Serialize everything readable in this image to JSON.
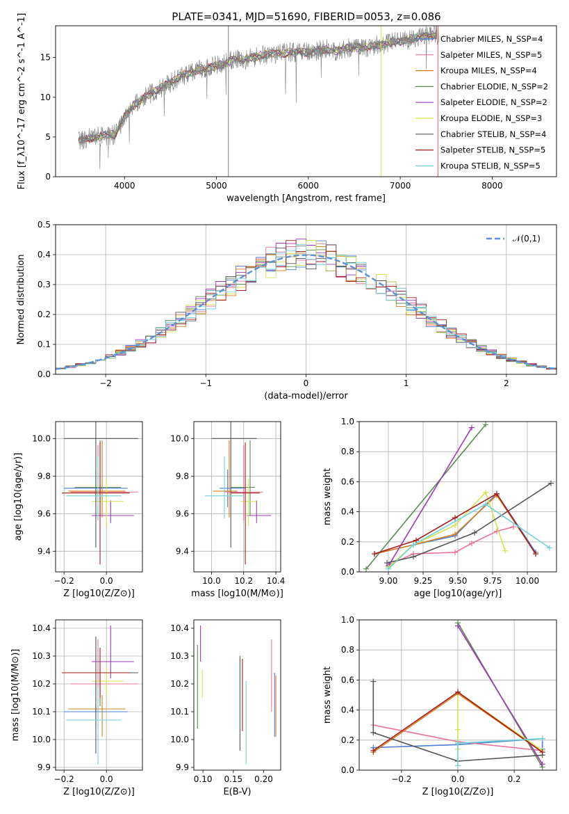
{
  "figure_title": "PLATE=0341, MJD=51690, FIBERID=0053, z=0.086",
  "model_colors": [
    "#4a7fd3",
    "#e8749a",
    "#d57e1c",
    "#5b8a52",
    "#9c38b8",
    "#d6e14e",
    "#555555",
    "#a51d1d",
    "#6fd3d8"
  ],
  "chart_data": [
    {
      "id": "spectrum",
      "type": "line",
      "title": "PLATE=0341, MJD=51690, FIBERID=0053, z=0.086",
      "xlabel": "wavelength [Angstrom, rest frame]",
      "ylabel": "Flux [f_λ10^-17 erg cm^-2 s^-1 A^-1]",
      "xlim": [
        3250,
        8700
      ],
      "ylim": [
        0,
        19
      ],
      "xticks": [
        4000,
        5000,
        6000,
        7000,
        8000
      ],
      "yticks": [
        0,
        5,
        10,
        15
      ],
      "grid": false,
      "legend_position": "top-right",
      "data_series": {
        "name": "",
        "color": "#808080",
        "x": [
          3500,
          3600,
          3700,
          3800,
          3900,
          4000,
          4100,
          4200,
          4300,
          4400,
          4500,
          4600,
          4700,
          4800,
          4900,
          5000,
          5100,
          5200,
          5300,
          5400,
          5500,
          5600,
          5700,
          5800,
          5900,
          6000,
          6100,
          6200,
          6300,
          6400,
          6500,
          6600,
          6700,
          6800,
          6900,
          7000,
          7100,
          7200,
          7300,
          7400
        ],
        "y": [
          4.5,
          4.8,
          5.0,
          5.2,
          5.3,
          7.5,
          9.0,
          9.8,
          10.6,
          11.2,
          11.8,
          12.6,
          13.0,
          13.5,
          13.6,
          14.0,
          14.3,
          14.8,
          14.7,
          15.0,
          15.3,
          15.5,
          15.5,
          15.6,
          15.7,
          15.6,
          15.9,
          16.0,
          15.8,
          16.2,
          16.3,
          16.2,
          16.5,
          16.6,
          16.9,
          17.0,
          17.3,
          17.5,
          17.7,
          17.9
        ]
      },
      "series": [
        {
          "name": "Chabrier MILES, N_SSP=4"
        },
        {
          "name": "Salpeter MILES, N_SSP=5"
        },
        {
          "name": "Kroupa MILES, N_SSP=4"
        },
        {
          "name": "Chabrier ELODIE, N_SSP=2"
        },
        {
          "name": "Salpeter ELODIE, N_SSP=2"
        },
        {
          "name": "Kroupa ELODIE, N_SSP=3"
        },
        {
          "name": "Chabrier STELIB, N_SSP=4"
        },
        {
          "name": "Salpeter STELIB, N_SSP=5"
        },
        {
          "name": "Kroupa STELIB, N_SSP=5"
        }
      ]
    },
    {
      "id": "residual-histogram",
      "type": "bar",
      "xlabel": "(data-model)/error",
      "ylabel": "Normed distribution",
      "xlim": [
        -2.5,
        2.5
      ],
      "ylim": [
        0,
        0.5
      ],
      "xticks": [
        -2,
        -1,
        0,
        1,
        2
      ],
      "yticks": [
        0.0,
        0.1,
        0.2,
        0.3,
        0.4,
        0.5
      ],
      "grid": true,
      "legend_position": "top-right",
      "reference_curve": {
        "name": "𝒩(0,1)",
        "mean": 0,
        "sigma": 1
      },
      "bin_width": 0.1
    },
    {
      "id": "age-vs-z",
      "type": "scatter",
      "xlabel": "Z [log10(Z/Z⊙)]",
      "ylabel": "age [log10(age/yr)]",
      "xlim": [
        -0.24,
        0.17
      ],
      "ylim": [
        9.29,
        10.09
      ],
      "xticks": [
        -0.2,
        0.0
      ],
      "yticks": [
        9.4,
        9.6,
        9.8,
        10.0
      ],
      "grid": true,
      "points": [
        {
          "x": -0.05,
          "y": 9.735,
          "xerr": [
            0.15,
            0.15
          ],
          "yerr": [
            0.1,
            0.1
          ]
        },
        {
          "x": -0.04,
          "y": 9.715,
          "xerr": [
            0.13,
            0.19
          ],
          "yerr": [
            0.15,
            0.25
          ]
        },
        {
          "x": -0.02,
          "y": 9.72,
          "xerr": [
            0.16,
            0.11
          ],
          "yerr": [
            0.14,
            0.27
          ]
        },
        {
          "x": -0.03,
          "y": 9.74,
          "xerr": [
            0.12,
            0.1
          ],
          "yerr": [
            0.15,
            0.25
          ]
        },
        {
          "x": 0.02,
          "y": 9.59,
          "xerr": [
            0.09,
            0.11
          ],
          "yerr": [
            0.04,
            0.08
          ]
        },
        {
          "x": 0.0,
          "y": 9.665,
          "xerr": [
            0.07,
            0.08
          ],
          "yerr": [
            0.13,
            0.12
          ]
        },
        {
          "x": -0.05,
          "y": 10.0,
          "xerr": [
            0.15,
            0.2
          ],
          "yerr": [
            0.58,
            0.6
          ]
        },
        {
          "x": -0.03,
          "y": 9.71,
          "xerr": [
            0.18,
            0.14
          ],
          "yerr": [
            0.38,
            0.27
          ]
        },
        {
          "x": -0.04,
          "y": 9.695,
          "xerr": [
            0.15,
            0.11
          ],
          "yerr": [
            0.12,
            0.21
          ]
        }
      ]
    },
    {
      "id": "age-vs-mass",
      "type": "scatter",
      "xlabel": "mass [log10(M/M⊙)]",
      "ylabel": "",
      "xlim": [
        9.89,
        10.43
      ],
      "ylim": [
        9.29,
        10.09
      ],
      "xticks": [
        10.0,
        10.2,
        10.4
      ],
      "yticks": [
        9.4,
        9.6,
        9.8,
        10.0
      ],
      "grid": true,
      "points": [
        {
          "x": 10.1,
          "y": 9.735,
          "xerr": [
            0.05,
            0.11
          ],
          "yerr": [
            0.1,
            0.1
          ]
        },
        {
          "x": 10.2,
          "y": 9.715,
          "xerr": [
            0.12,
            0.12
          ],
          "yerr": [
            0.15,
            0.25
          ]
        },
        {
          "x": 10.11,
          "y": 9.72,
          "xerr": [
            0.1,
            0.05
          ],
          "yerr": [
            0.14,
            0.27
          ]
        },
        {
          "x": 10.24,
          "y": 9.74,
          "xerr": [
            0.12,
            0.03
          ],
          "yerr": [
            0.15,
            0.25
          ]
        },
        {
          "x": 10.28,
          "y": 9.59,
          "xerr": [
            0.06,
            0.09
          ],
          "yerr": [
            0.04,
            0.08
          ]
        },
        {
          "x": 10.23,
          "y": 9.665,
          "xerr": [
            0.05,
            0.05
          ],
          "yerr": [
            0.13,
            0.12
          ]
        },
        {
          "x": 10.12,
          "y": 10.0,
          "xerr": [
            0.12,
            0.16
          ],
          "yerr": [
            0.58,
            0.6
          ]
        },
        {
          "x": 10.21,
          "y": 9.71,
          "xerr": [
            0.09,
            0.09
          ],
          "yerr": [
            0.38,
            0.27
          ]
        },
        {
          "x": 10.08,
          "y": 9.695,
          "xerr": [
            0.12,
            0.12
          ],
          "yerr": [
            0.12,
            0.21
          ]
        }
      ]
    },
    {
      "id": "mass-weight-vs-age",
      "type": "line",
      "xlabel": "age [log10(age/yr)]",
      "ylabel": "mass weight",
      "xlim": [
        8.79,
        10.21
      ],
      "ylim": [
        0,
        1
      ],
      "xticks": [
        9.0,
        9.25,
        9.5,
        9.75,
        10.0
      ],
      "yticks": [
        0.0,
        0.2,
        0.4,
        0.6,
        0.8,
        1.0
      ],
      "grid": true,
      "series": [
        {
          "x": [
            8.9,
            9.18,
            9.48,
            9.78,
            10.06
          ],
          "y": [
            0.12,
            0.18,
            0.24,
            0.52,
            0.13
          ]
        },
        {
          "x": [
            9.01,
            9.18,
            9.48,
            9.6,
            9.78,
            9.9
          ],
          "y": [
            0.05,
            0.12,
            0.13,
            0.19,
            0.27,
            0.3
          ]
        },
        {
          "x": [
            8.9,
            9.18,
            9.48,
            9.78,
            10.06
          ],
          "y": [
            0.12,
            0.18,
            0.25,
            0.51,
            0.12
          ]
        },
        {
          "x": [
            8.84,
            9.7
          ],
          "y": [
            0.02,
            0.98
          ]
        },
        {
          "x": [
            9.0,
            9.6
          ],
          "y": [
            0.04,
            0.96
          ]
        },
        {
          "x": [
            9.0,
            9.18,
            9.48,
            9.7,
            9.84
          ],
          "y": [
            0.03,
            0.18,
            0.31,
            0.53,
            0.14
          ]
        },
        {
          "x": [
            8.99,
            9.18,
            9.62,
            10.17
          ],
          "y": [
            0.06,
            0.1,
            0.26,
            0.59
          ]
        },
        {
          "x": [
            8.9,
            9.2,
            9.48,
            9.78,
            10.06
          ],
          "y": [
            0.12,
            0.21,
            0.36,
            0.52,
            0.12
          ]
        },
        {
          "x": [
            9.0,
            9.18,
            9.7,
            10.16
          ],
          "y": [
            0.02,
            0.18,
            0.45,
            0.16
          ]
        }
      ]
    },
    {
      "id": "mass-vs-z",
      "type": "scatter",
      "xlabel": "Z [log10(Z/Z⊙)]",
      "ylabel": "mass [log10(M/M⊙)]",
      "xlim": [
        -0.24,
        0.17
      ],
      "ylim": [
        9.89,
        10.43
      ],
      "xticks": [
        -0.2,
        0.0
      ],
      "yticks": [
        9.9,
        10.0,
        10.1,
        10.2,
        10.3,
        10.4
      ],
      "grid": true,
      "points": [
        {
          "x": -0.05,
          "y": 10.1,
          "xerr": [
            0.15,
            0.15
          ],
          "yerr": [
            0.05,
            0.11
          ]
        },
        {
          "x": -0.04,
          "y": 10.2,
          "xerr": [
            0.13,
            0.19
          ],
          "yerr": [
            0.12,
            0.16
          ]
        },
        {
          "x": -0.02,
          "y": 10.11,
          "xerr": [
            0.16,
            0.11
          ],
          "yerr": [
            0.1,
            0.05
          ]
        },
        {
          "x": -0.03,
          "y": 10.24,
          "xerr": [
            0.12,
            0.1
          ],
          "yerr": [
            0.12,
            0.03
          ]
        },
        {
          "x": 0.02,
          "y": 10.28,
          "xerr": [
            0.09,
            0.11
          ],
          "yerr": [
            0.06,
            0.13
          ]
        },
        {
          "x": 0.0,
          "y": 10.21,
          "xerr": [
            0.07,
            0.08
          ],
          "yerr": [
            0.05,
            0.05
          ]
        },
        {
          "x": -0.05,
          "y": 10.24,
          "xerr": [
            0.15,
            0.2
          ],
          "yerr": [
            0.29,
            0.13
          ]
        },
        {
          "x": -0.03,
          "y": 10.24,
          "xerr": [
            0.18,
            0.14
          ],
          "yerr": [
            0.09,
            0.09
          ]
        },
        {
          "x": -0.04,
          "y": 10.07,
          "xerr": [
            0.15,
            0.11
          ],
          "yerr": [
            0.16,
            0.12
          ]
        }
      ]
    },
    {
      "id": "mass-vs-ebv",
      "type": "scatter",
      "xlabel": "E(B-V)",
      "ylabel": "",
      "xlim": [
        0.085,
        0.228
      ],
      "ylim": [
        9.89,
        10.43
      ],
      "xticks": [
        0.1,
        0.15,
        0.2
      ],
      "yticks": [
        9.9,
        10.0,
        10.1,
        10.2,
        10.3,
        10.4
      ],
      "grid": false,
      "points": [
        {
          "x": 0.218,
          "y": 10.1,
          "xerr": [
            0,
            0
          ],
          "yerr": [
            0.09,
            0.14
          ]
        },
        {
          "x": 0.213,
          "y": 10.2,
          "xerr": [
            0,
            0
          ],
          "yerr": [
            0.1,
            0.16
          ]
        },
        {
          "x": 0.22,
          "y": 10.11,
          "xerr": [
            0,
            0
          ],
          "yerr": [
            0.1,
            0.12
          ]
        },
        {
          "x": 0.091,
          "y": 10.2,
          "xerr": [
            0,
            0
          ],
          "yerr": [
            0.16,
            0.14
          ]
        },
        {
          "x": 0.096,
          "y": 10.34,
          "xerr": [
            0,
            0
          ],
          "yerr": [
            0.06,
            0.07
          ]
        },
        {
          "x": 0.099,
          "y": 10.2,
          "xerr": [
            0,
            0
          ],
          "yerr": [
            0.05,
            0.05
          ]
        },
        {
          "x": 0.161,
          "y": 10.12,
          "xerr": [
            0,
            0
          ],
          "yerr": [
            0.16,
            0.18
          ]
        },
        {
          "x": 0.165,
          "y": 10.15,
          "xerr": [
            0,
            0
          ],
          "yerr": [
            0.12,
            0.14
          ]
        },
        {
          "x": 0.171,
          "y": 10.05,
          "xerr": [
            0,
            0
          ],
          "yerr": [
            0.14,
            0.16
          ]
        }
      ]
    },
    {
      "id": "mass-weight-vs-z",
      "type": "line",
      "xlabel": "Z [log10(Z/Z⊙)]",
      "ylabel": "mass weight",
      "xlim": [
        -0.35,
        0.35
      ],
      "ylim": [
        0,
        1
      ],
      "xticks": [
        -0.2,
        0.0,
        0.2
      ],
      "yticks": [
        0.0,
        0.2,
        0.4,
        0.6,
        0.8,
        1.0
      ],
      "grid": true,
      "series": [
        {
          "x": [
            -0.3,
            -0.3,
            0.0,
            0.3,
            0.3
          ],
          "y": [
            0.12,
            0.15,
            0.17,
            0.21,
            0.14
          ]
        },
        {
          "x": [
            -0.3,
            0.0,
            0.3,
            0.3
          ],
          "y": [
            0.3,
            0.19,
            0.13,
            0.12
          ]
        },
        {
          "x": [
            -0.3,
            0.0,
            0.3
          ],
          "y": [
            0.12,
            0.51,
            0.12
          ]
        },
        {
          "x": [
            0.0,
            0.3
          ],
          "y": [
            0.98,
            0.02
          ]
        },
        {
          "x": [
            0.0,
            0.3
          ],
          "y": [
            0.96,
            0.04
          ]
        },
        {
          "x": [
            0.0,
            0.0,
            0.0,
            0.3
          ],
          "y": [
            0.14,
            0.27,
            0.52,
            0.13
          ]
        },
        {
          "x": [
            -0.3,
            -0.3,
            0.0,
            0.3
          ],
          "y": [
            0.59,
            0.25,
            0.06,
            0.1
          ]
        },
        {
          "x": [
            -0.3,
            0.0,
            0.3
          ],
          "y": [
            0.13,
            0.52,
            0.12
          ]
        },
        {
          "x": [
            0.0,
            0.0,
            0.3
          ],
          "y": [
            0.03,
            0.18,
            0.21
          ]
        }
      ]
    }
  ]
}
